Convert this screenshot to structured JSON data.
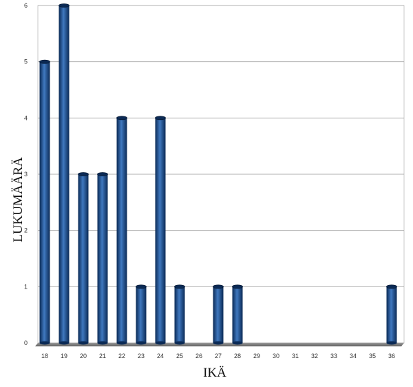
{
  "chart_data": {
    "type": "bar",
    "title": "",
    "xlabel": "IKÄ",
    "ylabel": "LUKUMÄÄRÄ",
    "categories": [
      "18",
      "19",
      "20",
      "21",
      "22",
      "23",
      "24",
      "25",
      "26",
      "27",
      "28",
      "29",
      "30",
      "31",
      "32",
      "33",
      "34",
      "35",
      "36"
    ],
    "values": [
      5,
      6,
      3,
      3,
      4,
      1,
      4,
      1,
      0,
      1,
      1,
      0,
      0,
      0,
      0,
      0,
      0,
      0,
      1
    ],
    "ylim": [
      0,
      6
    ],
    "yticks": [
      "0",
      "1",
      "2",
      "3",
      "4",
      "5",
      "6"
    ],
    "grid": true,
    "legend": "none",
    "style": "3d-cylinder",
    "colors": {
      "bar": "#1f4f8f",
      "bar_dark": "#0b2a55",
      "bar_light": "#4b86c9",
      "grid": "#b0b0b0",
      "floor": "#7f7f7f"
    }
  }
}
